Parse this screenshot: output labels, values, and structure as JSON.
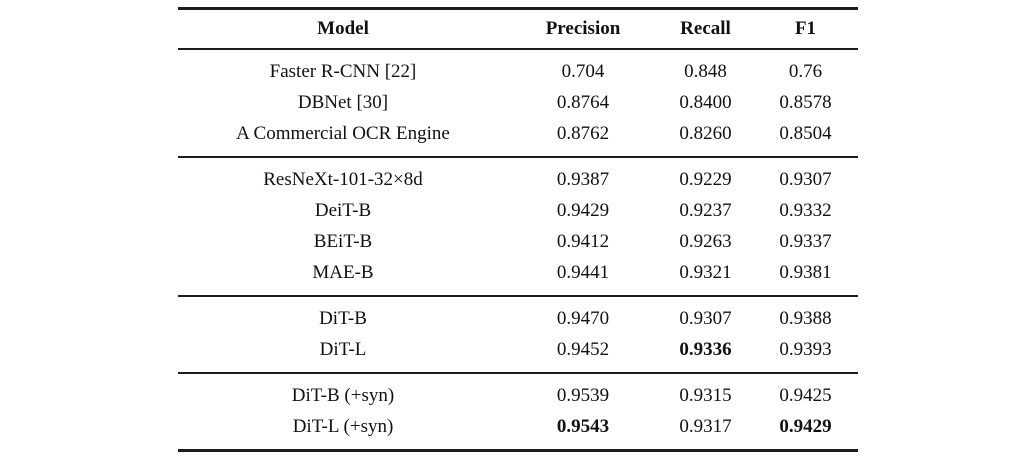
{
  "page": {
    "background": "#ffffff",
    "text_color": "#111111",
    "rule_color": "#1c1c1c"
  },
  "table": {
    "columns": [
      "Model",
      "Precision",
      "Recall",
      "F1"
    ],
    "groups": [
      {
        "rows": [
          {
            "model": "Faster R-CNN [22]",
            "precision": "0.704",
            "recall": "0.848",
            "f1": "0.76",
            "bold": []
          },
          {
            "model": "DBNet [30]",
            "precision": "0.8764",
            "recall": "0.8400",
            "f1": "0.8578",
            "bold": []
          },
          {
            "model": "A Commercial OCR Engine",
            "precision": "0.8762",
            "recall": "0.8260",
            "f1": "0.8504",
            "bold": []
          }
        ]
      },
      {
        "rows": [
          {
            "model": "ResNeXt-101-32×8d",
            "precision": "0.9387",
            "recall": "0.9229",
            "f1": "0.9307",
            "bold": []
          },
          {
            "model": "DeiT-B",
            "precision": "0.9429",
            "recall": "0.9237",
            "f1": "0.9332",
            "bold": []
          },
          {
            "model": "BEiT-B",
            "precision": "0.9412",
            "recall": "0.9263",
            "f1": "0.9337",
            "bold": []
          },
          {
            "model": "MAE-B",
            "precision": "0.9441",
            "recall": "0.9321",
            "f1": "0.9381",
            "bold": []
          }
        ]
      },
      {
        "rows": [
          {
            "model": "DiT-B",
            "precision": "0.9470",
            "recall": "0.9307",
            "f1": "0.9388",
            "bold": []
          },
          {
            "model": "DiT-L",
            "precision": "0.9452",
            "recall": "0.9336",
            "f1": "0.9393",
            "bold": [
              "recall"
            ]
          }
        ]
      },
      {
        "rows": [
          {
            "model": "DiT-B (+syn)",
            "precision": "0.9539",
            "recall": "0.9315",
            "f1": "0.9425",
            "bold": []
          },
          {
            "model": "DiT-L (+syn)",
            "precision": "0.9543",
            "recall": "0.9317",
            "f1": "0.9429",
            "bold": [
              "precision",
              "f1"
            ]
          }
        ]
      }
    ]
  },
  "chart_data": {
    "type": "table",
    "columns": [
      "Model",
      "Precision",
      "Recall",
      "F1"
    ],
    "rows": [
      [
        "Faster R-CNN [22]",
        0.704,
        0.848,
        0.76
      ],
      [
        "DBNet [30]",
        0.8764,
        0.84,
        0.8578
      ],
      [
        "A Commercial OCR Engine",
        0.8762,
        0.826,
        0.8504
      ],
      [
        "ResNeXt-101-32×8d",
        0.9387,
        0.9229,
        0.9307
      ],
      [
        "DeiT-B",
        0.9429,
        0.9237,
        0.9332
      ],
      [
        "BEiT-B",
        0.9412,
        0.9263,
        0.9337
      ],
      [
        "MAE-B",
        0.9441,
        0.9321,
        0.9381
      ],
      [
        "DiT-B",
        0.947,
        0.9307,
        0.9388
      ],
      [
        "DiT-L",
        0.9452,
        0.9336,
        0.9393
      ],
      [
        "DiT-B (+syn)",
        0.9539,
        0.9315,
        0.9425
      ],
      [
        "DiT-L (+syn)",
        0.9543,
        0.9317,
        0.9429
      ]
    ],
    "bold_cells": [
      {
        "row": "DiT-L",
        "column": "Recall",
        "value": 0.9336
      },
      {
        "row": "DiT-L (+syn)",
        "column": "Precision",
        "value": 0.9543
      },
      {
        "row": "DiT-L (+syn)",
        "column": "F1",
        "value": 0.9429
      }
    ],
    "group_breaks_after_row_index": [
      2,
      6,
      8
    ]
  }
}
